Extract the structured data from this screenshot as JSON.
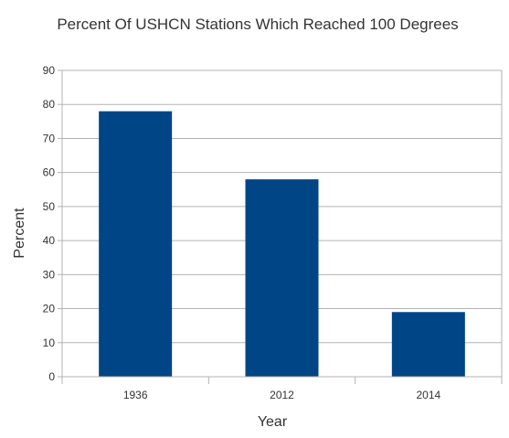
{
  "chart_data": {
    "type": "bar",
    "title": "Percent Of USHCN Stations Which Reached 100 Degrees",
    "xlabel": "Year",
    "ylabel": "Percent",
    "categories": [
      "1936",
      "2012",
      "2014"
    ],
    "values": [
      78,
      58,
      19
    ],
    "ylim": [
      0,
      90
    ],
    "yticks": [
      0,
      10,
      20,
      30,
      40,
      50,
      60,
      70,
      80,
      90
    ],
    "grid": true,
    "legend": "none",
    "bar_color": "#004586",
    "grid_color": "#b3b3b3",
    "axis_color": "#b3b3b3"
  }
}
